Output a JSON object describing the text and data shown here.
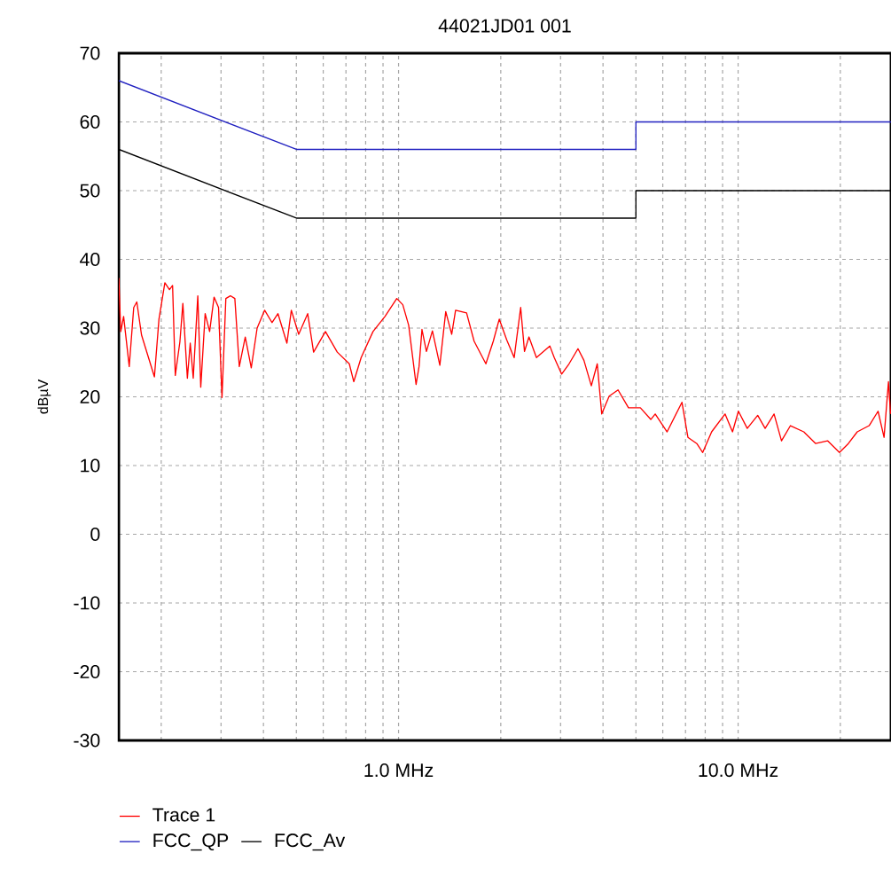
{
  "chart_data": {
    "type": "line",
    "title": "44021JD01 001",
    "ylabel": "dBµV",
    "log": "x",
    "grid": "xy",
    "legend": "bottom",
    "marker": "none",
    "line_style": "solid",
    "xlim": [
      0.15,
      28.2
    ],
    "ylim": [
      -30,
      70
    ],
    "xticks": [
      {
        "value": 0.2,
        "label": null
      },
      {
        "value": 0.3,
        "label": null
      },
      {
        "value": 0.4,
        "label": null
      },
      {
        "value": 0.5,
        "label": null
      },
      {
        "value": 0.6,
        "label": null
      },
      {
        "value": 0.7,
        "label": null
      },
      {
        "value": 0.8,
        "label": null
      },
      {
        "value": 0.9,
        "label": null
      },
      {
        "value": 1,
        "label": "1.0 MHz"
      },
      {
        "value": 2,
        "label": null
      },
      {
        "value": 3,
        "label": null
      },
      {
        "value": 4,
        "label": null
      },
      {
        "value": 5,
        "label": null
      },
      {
        "value": 6,
        "label": null
      },
      {
        "value": 7,
        "label": null
      },
      {
        "value": 8,
        "label": null
      },
      {
        "value": 9,
        "label": null
      },
      {
        "value": 10,
        "label": "10.0 MHz"
      },
      {
        "value": 20,
        "label": null
      }
    ],
    "yticks": [
      -30,
      -20,
      -10,
      0,
      10,
      20,
      30,
      40,
      50,
      60,
      70
    ],
    "series": [
      {
        "name": "Trace 1",
        "color": "#ff0000",
        "x": [
          0.15,
          0.152,
          0.155,
          0.161,
          0.166,
          0.1695,
          0.175,
          0.191,
          0.197,
          0.205,
          0.2115,
          0.216,
          0.22,
          0.227,
          0.2316,
          0.2388,
          0.2435,
          0.2485,
          0.2563,
          0.2615,
          0.2694,
          0.2777,
          0.2862,
          0.295,
          0.302,
          0.31,
          0.3197,
          0.3295,
          0.3396,
          0.3536,
          0.3683,
          0.3833,
          0.4033,
          0.4239,
          0.4414,
          0.469,
          0.4833,
          0.508,
          0.54,
          0.562,
          0.609,
          0.66,
          0.716,
          0.738,
          0.776,
          0.841,
          0.912,
          0.988,
          1.029,
          1.071,
          1.126,
          1.149,
          1.172,
          1.208,
          1.258,
          1.323,
          1.377,
          1.434,
          1.472,
          1.586,
          1.669,
          1.808,
          1.901,
          1.98,
          2.082,
          2.19,
          2.289,
          2.349,
          2.421,
          2.547,
          2.789,
          2.874,
          3.022,
          3.178,
          3.376,
          3.515,
          3.696,
          3.848,
          3.966,
          4.171,
          4.43,
          4.755,
          5.154,
          5.532,
          5.7,
          6.178,
          6.833,
          7.115,
          7.557,
          7.866,
          8.356,
          9.151,
          9.627,
          10.02,
          10.64,
          11.42,
          12.01,
          12.76,
          13.42,
          14.26,
          15.61,
          16.92,
          18.34,
          19.88,
          21.12,
          22.43,
          24.31,
          25.83,
          26.9,
          27.72,
          28.11
        ],
        "values": [
          37.3,
          29.5,
          31.7,
          24.4,
          33,
          33.8,
          29,
          22.9,
          31.3,
          36.6,
          35.6,
          36.2,
          23.1,
          28,
          33.6,
          22.7,
          27.8,
          22.7,
          34.7,
          21.4,
          32.1,
          29.5,
          34.5,
          33,
          19.9,
          34.3,
          34.7,
          34.3,
          24.4,
          28.7,
          24.2,
          30,
          32.6,
          30.8,
          32.1,
          27.8,
          32.6,
          29.1,
          32.1,
          26.5,
          29.5,
          26.5,
          24.8,
          22.2,
          25.7,
          29.5,
          31.7,
          34.3,
          33.4,
          30.4,
          21.8,
          24.4,
          29.8,
          26.6,
          29.6,
          24.6,
          32.4,
          29.1,
          32.6,
          32.2,
          28.1,
          24.8,
          28.1,
          31.3,
          28.3,
          25.7,
          33,
          26.6,
          28.7,
          25.7,
          27.4,
          25.7,
          23.3,
          24.8,
          27,
          25.3,
          21.6,
          24.8,
          17.5,
          20.1,
          21,
          18.4,
          18.4,
          16.7,
          17.5,
          14.9,
          19.2,
          14.1,
          13.2,
          11.9,
          14.9,
          17.5,
          14.9,
          17.9,
          15.4,
          17.3,
          15.4,
          17.5,
          13.6,
          15.8,
          14.9,
          13.2,
          13.6,
          11.9,
          13.2,
          14.9,
          15.8,
          17.9,
          14.1,
          22.2,
          17.5
        ]
      },
      {
        "name": "FCC_QP",
        "color": "#2020c0",
        "x": [
          0.15,
          0.5,
          5,
          5,
          28.2
        ],
        "values": [
          66,
          56,
          56,
          60,
          60
        ]
      },
      {
        "name": "FCC_Av",
        "color": "#000000",
        "x": [
          0.15,
          0.5,
          5,
          5,
          28.2
        ],
        "values": [
          56,
          46,
          46,
          50,
          50
        ]
      }
    ]
  }
}
